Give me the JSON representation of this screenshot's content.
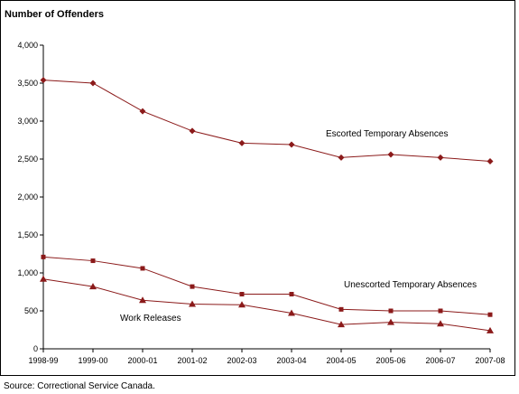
{
  "chart_data": {
    "type": "line",
    "ylabel": "Number of Offenders",
    "xlabel": "",
    "title": "",
    "categories": [
      "1998-99",
      "1999-00",
      "2000-01",
      "2001-02",
      "2002-03",
      "2003-04",
      "2004-05",
      "2005-06",
      "2006-07",
      "2007-08"
    ],
    "ylim": [
      0,
      4000
    ],
    "yticks": [
      0,
      500,
      1000,
      1500,
      2000,
      2500,
      3000,
      3500,
      4000
    ],
    "ytick_labels": [
      "0",
      "500",
      "1,000",
      "1,500",
      "2,000",
      "2,500",
      "3,000",
      "3,500",
      "4,000"
    ],
    "grid": false,
    "series": [
      {
        "name": "Escorted Temporary Absences",
        "marker": "diamond",
        "color": "#8b1a1a",
        "values": [
          3540,
          3500,
          3130,
          2870,
          2710,
          2690,
          2520,
          2560,
          2520,
          2470
        ]
      },
      {
        "name": "Unescorted Temporary Absences",
        "marker": "square",
        "color": "#8b1a1a",
        "values": [
          1210,
          1160,
          1060,
          820,
          720,
          720,
          520,
          500,
          500,
          450
        ]
      },
      {
        "name": "Work Releases",
        "marker": "triangle",
        "color": "#8b1a1a",
        "values": [
          920,
          820,
          640,
          590,
          580,
          470,
          320,
          350,
          330,
          240
        ]
      }
    ]
  },
  "source": "Source:  Correctional Service Canada."
}
